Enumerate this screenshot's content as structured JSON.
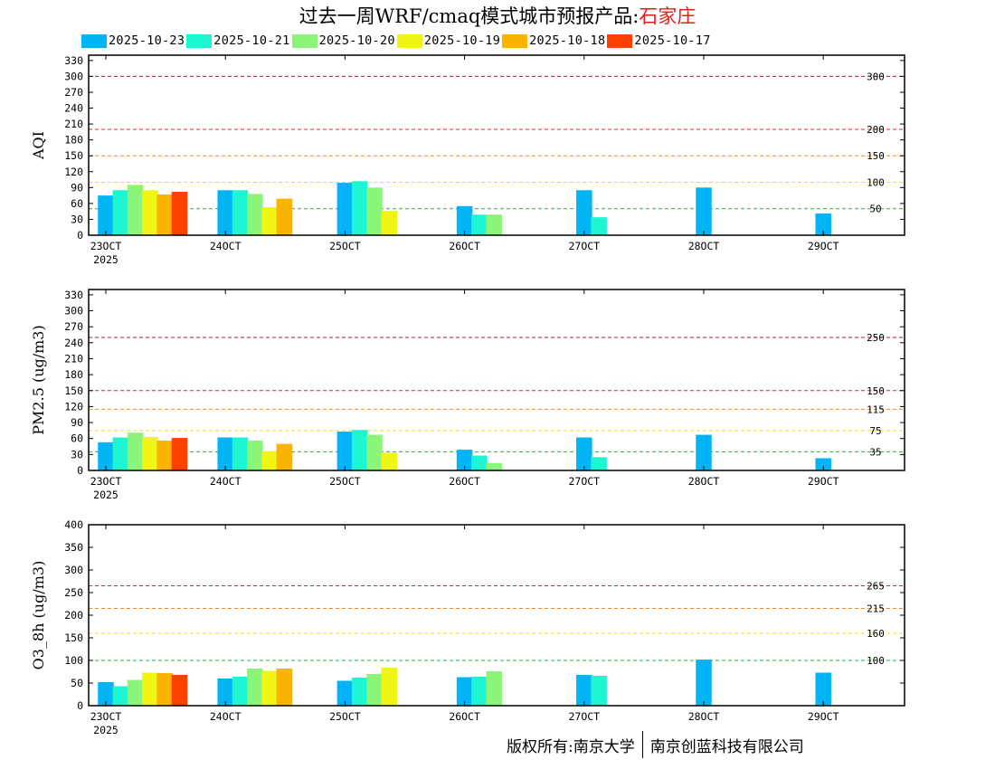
{
  "title": {
    "main": "过去一周WRF/cmaq模式城市预报产品:",
    "city": "石家庄",
    "city_color": "#e0201a"
  },
  "legend": [
    {
      "label": "2025-10-23",
      "color": "#00b4f5"
    },
    {
      "label": "2025-10-21",
      "color": "#1ef5d2"
    },
    {
      "label": "2025-10-20",
      "color": "#8af578"
    },
    {
      "label": "2025-10-19",
      "color": "#f0f514"
    },
    {
      "label": "2025-10-18",
      "color": "#fab400"
    },
    {
      "label": "2025-10-17",
      "color": "#fa4100"
    }
  ],
  "footer": {
    "left": "版权所有:南京大学",
    "right": "南京创蓝科技有限公司"
  },
  "chart_data": [
    {
      "type": "bar",
      "ylabel": "AQI",
      "ylim": [
        0,
        340
      ],
      "yticks": [
        0,
        30,
        60,
        90,
        120,
        150,
        180,
        210,
        240,
        270,
        300,
        330
      ],
      "categories": [
        "23OCT",
        "24OCT",
        "25OCT",
        "26OCT",
        "27OCT",
        "28OCT",
        "29OCT"
      ],
      "year_label": "2025",
      "thresholds": [
        {
          "value": 300,
          "label": "300",
          "color": "#a01e50"
        },
        {
          "value": 200,
          "label": "200",
          "color": "#e02828"
        },
        {
          "value": 150,
          "label": "150",
          "color": "#f08c1e"
        },
        {
          "value": 100,
          "label": "100",
          "color": "#f0e01e"
        },
        {
          "value": 50,
          "label": "50",
          "color": "#28b428"
        }
      ],
      "series": [
        {
          "name": "2025-10-23",
          "values": [
            75,
            85,
            99,
            55,
            85,
            90,
            41
          ]
        },
        {
          "name": "2025-10-21",
          "values": [
            85,
            85,
            102,
            39,
            34,
            null,
            null
          ]
        },
        {
          "name": "2025-10-20",
          "values": [
            95,
            78,
            90,
            39,
            null,
            null,
            null
          ]
        },
        {
          "name": "2025-10-19",
          "values": [
            85,
            53,
            46,
            null,
            null,
            null,
            null
          ]
        },
        {
          "name": "2025-10-18",
          "values": [
            77,
            69,
            null,
            null,
            null,
            null,
            null
          ]
        },
        {
          "name": "2025-10-17",
          "values": [
            82,
            null,
            null,
            null,
            null,
            null,
            null
          ]
        }
      ]
    },
    {
      "type": "bar",
      "ylabel": "PM2.5 (ug/m3)",
      "ylim": [
        0,
        340
      ],
      "yticks": [
        0,
        30,
        60,
        90,
        120,
        150,
        180,
        210,
        240,
        270,
        300,
        330
      ],
      "categories": [
        "23OCT",
        "24OCT",
        "25OCT",
        "26OCT",
        "27OCT",
        "28OCT",
        "29OCT"
      ],
      "year_label": "2025",
      "thresholds": [
        {
          "value": 250,
          "label": "250",
          "color": "#a01e50"
        },
        {
          "value": 150,
          "label": "150",
          "color": "#e02828"
        },
        {
          "value": 115,
          "label": "115",
          "color": "#f08c1e"
        },
        {
          "value": 75,
          "label": "75",
          "color": "#f0e01e"
        },
        {
          "value": 35,
          "label": "35",
          "color": "#28b428"
        }
      ],
      "series": [
        {
          "name": "2025-10-23",
          "values": [
            53,
            62,
            73,
            39,
            62,
            67,
            23
          ]
        },
        {
          "name": "2025-10-21",
          "values": [
            62,
            62,
            76,
            28,
            25,
            null,
            null
          ]
        },
        {
          "name": "2025-10-20",
          "values": [
            71,
            56,
            67,
            14,
            null,
            null,
            null
          ]
        },
        {
          "name": "2025-10-19",
          "values": [
            63,
            36,
            33,
            null,
            null,
            null,
            null
          ]
        },
        {
          "name": "2025-10-18",
          "values": [
            56,
            50,
            null,
            null,
            null,
            null,
            null
          ]
        },
        {
          "name": "2025-10-17",
          "values": [
            61,
            null,
            null,
            null,
            null,
            null,
            null
          ]
        }
      ]
    },
    {
      "type": "bar",
      "ylabel": "O3_8h (ug/m3)",
      "ylim": [
        0,
        400
      ],
      "yticks": [
        0,
        50,
        100,
        150,
        200,
        250,
        300,
        350,
        400
      ],
      "categories": [
        "23OCT",
        "24OCT",
        "25OCT",
        "26OCT",
        "27OCT",
        "28OCT",
        "29OCT"
      ],
      "year_label": "2025",
      "thresholds": [
        {
          "value": 265,
          "label": "265",
          "color": "#e02828"
        },
        {
          "value": 215,
          "label": "215",
          "color": "#f08c1e"
        },
        {
          "value": 160,
          "label": "160",
          "color": "#f0e01e"
        },
        {
          "value": 100,
          "label": "100",
          "color": "#28b428"
        }
      ],
      "series": [
        {
          "name": "2025-10-23",
          "values": [
            52,
            60,
            55,
            63,
            68,
            102,
            73
          ]
        },
        {
          "name": "2025-10-21",
          "values": [
            43,
            64,
            62,
            64,
            66,
            null,
            null
          ]
        },
        {
          "name": "2025-10-20",
          "values": [
            57,
            82,
            70,
            76,
            null,
            null,
            null
          ]
        },
        {
          "name": "2025-10-19",
          "values": [
            73,
            77,
            84,
            null,
            null,
            null,
            null
          ]
        },
        {
          "name": "2025-10-18",
          "values": [
            72,
            82,
            null,
            null,
            null,
            null,
            null
          ]
        },
        {
          "name": "2025-10-17",
          "values": [
            68,
            null,
            null,
            null,
            null,
            null,
            null
          ]
        }
      ]
    }
  ]
}
